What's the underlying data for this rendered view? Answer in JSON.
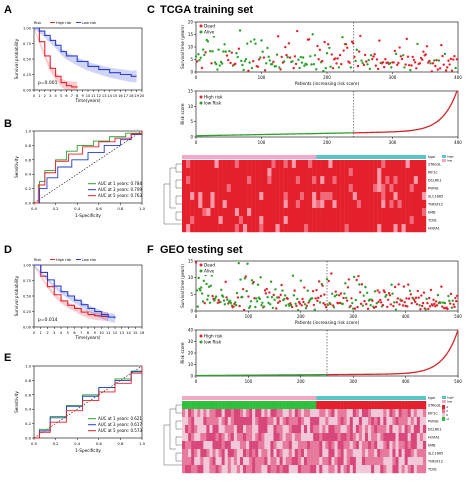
{
  "panel_labels": {
    "A": "A",
    "B": "B",
    "C": "C",
    "D": "D",
    "E": "E",
    "F": "F"
  },
  "section_titles": {
    "tcga": "TCGA training set",
    "geo": "GEO testing set"
  },
  "colors": {
    "high": "#e8202a",
    "low": "#2a3fd0",
    "alive": "#2ca02c",
    "dead": "#e8202a",
    "risk_line": "#d62728",
    "low_line": "#2ca02c"
  },
  "chart_data": [
    {
      "id": "A",
      "type": "line",
      "legend": [
        "Risk",
        "High risk",
        "Low risk"
      ],
      "xlabel": "Time(years)",
      "ylabel": "Survival probability",
      "annotation": "p=0.001",
      "xlim": [
        0,
        20
      ],
      "ylim": [
        0,
        1
      ],
      "x_ticks": [
        "0",
        "1",
        "2",
        "3",
        "4",
        "5",
        "6",
        "7",
        "8",
        "9",
        "10",
        "11",
        "12",
        "13",
        "14",
        "15",
        "16",
        "17",
        "18",
        "19",
        "20"
      ],
      "y_ticks": [
        "0.00",
        "0.25",
        "0.50",
        "0.75",
        "1.00"
      ],
      "series": [
        {
          "name": "High risk",
          "x": [
            0,
            1,
            2,
            3,
            4,
            5,
            6,
            7,
            8
          ],
          "y": [
            1,
            0.78,
            0.55,
            0.35,
            0.22,
            0.12,
            0.07,
            0.05,
            0.04
          ]
        },
        {
          "name": "Low risk",
          "x": [
            0,
            1,
            2,
            3,
            4,
            5,
            6,
            8,
            10,
            12,
            14,
            16,
            18,
            19
          ],
          "y": [
            1,
            0.95,
            0.88,
            0.8,
            0.72,
            0.62,
            0.55,
            0.46,
            0.38,
            0.33,
            0.28,
            0.25,
            0.22,
            0.22
          ]
        }
      ]
    },
    {
      "id": "B",
      "type": "line",
      "xlabel": "1-Specificity",
      "ylabel": "Sensitivity",
      "xlim": [
        0,
        1
      ],
      "ylim": [
        0,
        1
      ],
      "x_ticks": [
        "0.0",
        "0.2",
        "0.4",
        "0.6",
        "0.8",
        "1.0"
      ],
      "y_ticks": [
        "0.0",
        "0.2",
        "0.4",
        "0.6",
        "0.8",
        "1.0"
      ],
      "legend_entries": [
        "AUC at 1 years: 0.784",
        "AUC at 3 years: 0.709",
        "AUC at 5 years: 0.763"
      ],
      "series": [
        {
          "name": "AUC at 1 years: 0.784",
          "x": [
            0,
            0.05,
            0.1,
            0.2,
            0.3,
            0.4,
            0.55,
            0.7,
            0.85,
            1
          ],
          "y": [
            0,
            0.3,
            0.45,
            0.6,
            0.72,
            0.8,
            0.86,
            0.92,
            0.97,
            1
          ]
        },
        {
          "name": "AUC at 3 years: 0.709",
          "x": [
            0,
            0.05,
            0.12,
            0.22,
            0.35,
            0.5,
            0.65,
            0.8,
            0.9,
            1
          ],
          "y": [
            0,
            0.2,
            0.35,
            0.5,
            0.6,
            0.7,
            0.8,
            0.88,
            0.95,
            1
          ]
        },
        {
          "name": "AUC at 5 years: 0.763",
          "x": [
            0,
            0.04,
            0.1,
            0.2,
            0.32,
            0.45,
            0.6,
            0.75,
            0.9,
            1
          ],
          "y": [
            0,
            0.25,
            0.42,
            0.58,
            0.68,
            0.78,
            0.85,
            0.9,
            0.96,
            1
          ]
        }
      ]
    },
    {
      "id": "C1",
      "type": "scatter",
      "legend": [
        "Dead",
        "Alive"
      ],
      "xlabel": "Patients (increasing risk score)",
      "ylabel": "Survival time (years)",
      "xlim": [
        0,
        440
      ],
      "ylim": [
        0,
        20
      ],
      "x_ticks": [
        "0",
        "100",
        "200",
        "300",
        "400"
      ],
      "y_ticks": [
        "0",
        "5",
        "10",
        "15",
        "20"
      ],
      "cutoff": 265
    },
    {
      "id": "C2",
      "type": "line",
      "legend": [
        "High risk",
        "low Risk"
      ],
      "xlabel": "",
      "ylabel": "Risk score",
      "xlim": [
        0,
        440
      ],
      "ylim": [
        0,
        15
      ],
      "x_ticks": [
        "0",
        "100",
        "200",
        "300",
        "400"
      ],
      "y_ticks": [
        "0",
        "5",
        "10",
        "15"
      ],
      "cutoff": 265
    },
    {
      "id": "C3",
      "type": "heatmap",
      "genes": [
        "STAG3L",
        "KIF1C",
        "DCLRE1",
        "PVRIG",
        "SLC16A5",
        "TNFSF12",
        "EMB",
        "TCN1",
        "HOXA1"
      ],
      "legend": [
        "type",
        "high",
        "low"
      ]
    },
    {
      "id": "D",
      "type": "line",
      "legend": [
        "Risk",
        "High risk",
        "Low risk"
      ],
      "xlabel": "Time(years)",
      "ylabel": "Survival probability",
      "annotation": "p=0.014",
      "xlim": [
        0,
        16
      ],
      "ylim": [
        0,
        1
      ],
      "x_ticks": [
        "0",
        "1",
        "2",
        "3",
        "4",
        "5",
        "6",
        "7",
        "8",
        "9",
        "10",
        "11",
        "12",
        "13",
        "14",
        "15",
        "16"
      ],
      "y_ticks": [
        "0.00",
        "0.25",
        "0.50",
        "0.75",
        "1.00"
      ],
      "series": [
        {
          "name": "High risk",
          "x": [
            0,
            1,
            2,
            3,
            4,
            5,
            6,
            7,
            8,
            9,
            10,
            11
          ],
          "y": [
            1,
            0.82,
            0.65,
            0.52,
            0.42,
            0.35,
            0.3,
            0.24,
            0.2,
            0.18,
            0.17,
            0.17
          ]
        },
        {
          "name": "Low risk",
          "x": [
            0,
            1,
            2,
            3,
            4,
            5,
            6,
            7,
            8,
            9,
            10,
            11,
            12
          ],
          "y": [
            1,
            0.88,
            0.76,
            0.66,
            0.57,
            0.5,
            0.43,
            0.36,
            0.3,
            0.25,
            0.2,
            0.16,
            0.14
          ]
        }
      ]
    },
    {
      "id": "E",
      "type": "line",
      "xlabel": "1-Specificity",
      "ylabel": "Sensitivity",
      "xlim": [
        0,
        1
      ],
      "ylim": [
        0,
        1
      ],
      "x_ticks": [
        "0.0",
        "0.2",
        "0.4",
        "0.6",
        "0.8",
        "1.0"
      ],
      "y_ticks": [
        "0.0",
        "0.2",
        "0.4",
        "0.6",
        "0.8",
        "1.0"
      ],
      "legend_entries": [
        "AUC at 1 years: 0.621",
        "AUC at 3 years: 0.617",
        "AUC at 5 years: 0.573"
      ],
      "series": [
        {
          "name": "AUC at 1 years: 0.621",
          "x": [
            0,
            0.05,
            0.15,
            0.3,
            0.45,
            0.6,
            0.75,
            0.9,
            1
          ],
          "y": [
            0,
            0.12,
            0.3,
            0.45,
            0.6,
            0.7,
            0.82,
            0.93,
            1
          ]
        },
        {
          "name": "AUC at 3 years: 0.617",
          "x": [
            0,
            0.05,
            0.15,
            0.3,
            0.45,
            0.6,
            0.75,
            0.9,
            1
          ],
          "y": [
            0,
            0.1,
            0.28,
            0.44,
            0.58,
            0.7,
            0.8,
            0.92,
            1
          ]
        },
        {
          "name": "AUC at 5 years: 0.573",
          "x": [
            0,
            0.05,
            0.15,
            0.3,
            0.45,
            0.6,
            0.75,
            0.9,
            1
          ],
          "y": [
            0,
            0.08,
            0.22,
            0.38,
            0.52,
            0.64,
            0.76,
            0.9,
            1
          ]
        }
      ]
    },
    {
      "id": "F1",
      "type": "scatter",
      "legend": [
        "Dead",
        "Alive"
      ],
      "xlabel": "Patients (increasing risk score)",
      "ylabel": "Survival time (years)",
      "xlim": [
        0,
        500
      ],
      "ylim": [
        0,
        15
      ],
      "x_ticks": [
        "0",
        "100",
        "200",
        "300",
        "400",
        "500"
      ],
      "y_ticks": [
        "0",
        "5",
        "10",
        "15"
      ],
      "cutoff": 250
    },
    {
      "id": "F2",
      "type": "line",
      "legend": [
        "High risk",
        "low Risk"
      ],
      "xlabel": "",
      "ylabel": "Risk score",
      "xlim": [
        0,
        500
      ],
      "ylim": [
        0,
        40
      ],
      "x_ticks": [
        "0",
        "100",
        "200",
        "300",
        "400",
        "500"
      ],
      "y_ticks": [
        "0",
        "10",
        "20",
        "30",
        "40"
      ],
      "cutoff": 250
    },
    {
      "id": "F3",
      "type": "heatmap",
      "genes": [
        "STAG3L",
        "KIF1C",
        "PVRIG",
        "DCLRE1",
        "HOXA1",
        "EMB",
        "SLC16A5",
        "TNFSF12",
        "TCN1"
      ],
      "legend": [
        "type",
        "high",
        "low",
        "4",
        "2",
        "0",
        "-2"
      ]
    }
  ]
}
